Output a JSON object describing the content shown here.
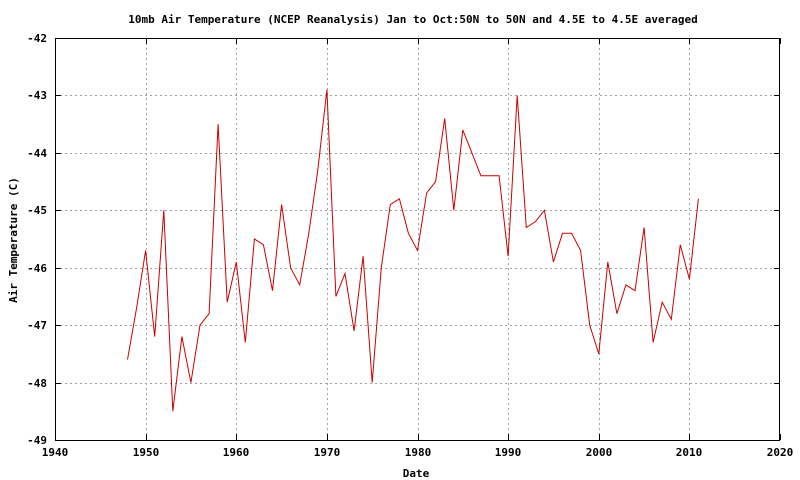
{
  "chart_data": {
    "type": "line",
    "title": "10mb Air Temperature (NCEP Reanalysis) Jan to Oct:50N to 50N and 4.5E to 4.5E averaged",
    "xlabel": "Date",
    "ylabel": "Air Temperature (C)",
    "xlim": [
      1940,
      2020
    ],
    "ylim": [
      -49,
      -42
    ],
    "xticks": [
      1940,
      1950,
      1960,
      1970,
      1980,
      1990,
      2000,
      2010,
      2020
    ],
    "yticks": [
      -42,
      -43,
      -44,
      -45,
      -46,
      -47,
      -48,
      -49
    ],
    "grid": true,
    "series": [
      {
        "color": "#cc0000",
        "x": [
          1948,
          1949,
          1950,
          1951,
          1952,
          1953,
          1954,
          1955,
          1956,
          1957,
          1958,
          1959,
          1960,
          1961,
          1962,
          1963,
          1964,
          1965,
          1966,
          1967,
          1968,
          1969,
          1970,
          1971,
          1972,
          1973,
          1974,
          1975,
          1976,
          1977,
          1978,
          1979,
          1980,
          1981,
          1982,
          1983,
          1984,
          1985,
          1986,
          1987,
          1988,
          1989,
          1990,
          1991,
          1992,
          1993,
          1994,
          1995,
          1996,
          1997,
          1998,
          1999,
          2000,
          2001,
          2002,
          2003,
          2004,
          2005,
          2006,
          2007,
          2008,
          2009,
          2010,
          2011
        ],
        "values": [
          -47.6,
          -46.7,
          -45.7,
          -47.2,
          -45.0,
          -48.5,
          -47.2,
          -48.0,
          -47.0,
          -46.8,
          -43.5,
          -46.6,
          -45.9,
          -47.3,
          -45.5,
          -45.6,
          -46.4,
          -44.9,
          -46.0,
          -46.3,
          -45.4,
          -44.3,
          -42.9,
          -46.5,
          -46.1,
          -47.1,
          -45.8,
          -48.0,
          -46.0,
          -44.9,
          -44.8,
          -45.4,
          -45.7,
          -44.7,
          -44.5,
          -43.4,
          -45.0,
          -43.6,
          -44.0,
          -44.4,
          -44.4,
          -44.4,
          -45.8,
          -43.0,
          -45.3,
          -45.2,
          -45.0,
          -45.9,
          -45.4,
          -45.4,
          -45.7,
          -47.0,
          -47.5,
          -45.9,
          -46.8,
          -46.3,
          -46.4,
          -45.3,
          -47.3,
          -46.6,
          -46.9,
          -45.6,
          -46.2,
          -44.8
        ]
      }
    ]
  }
}
